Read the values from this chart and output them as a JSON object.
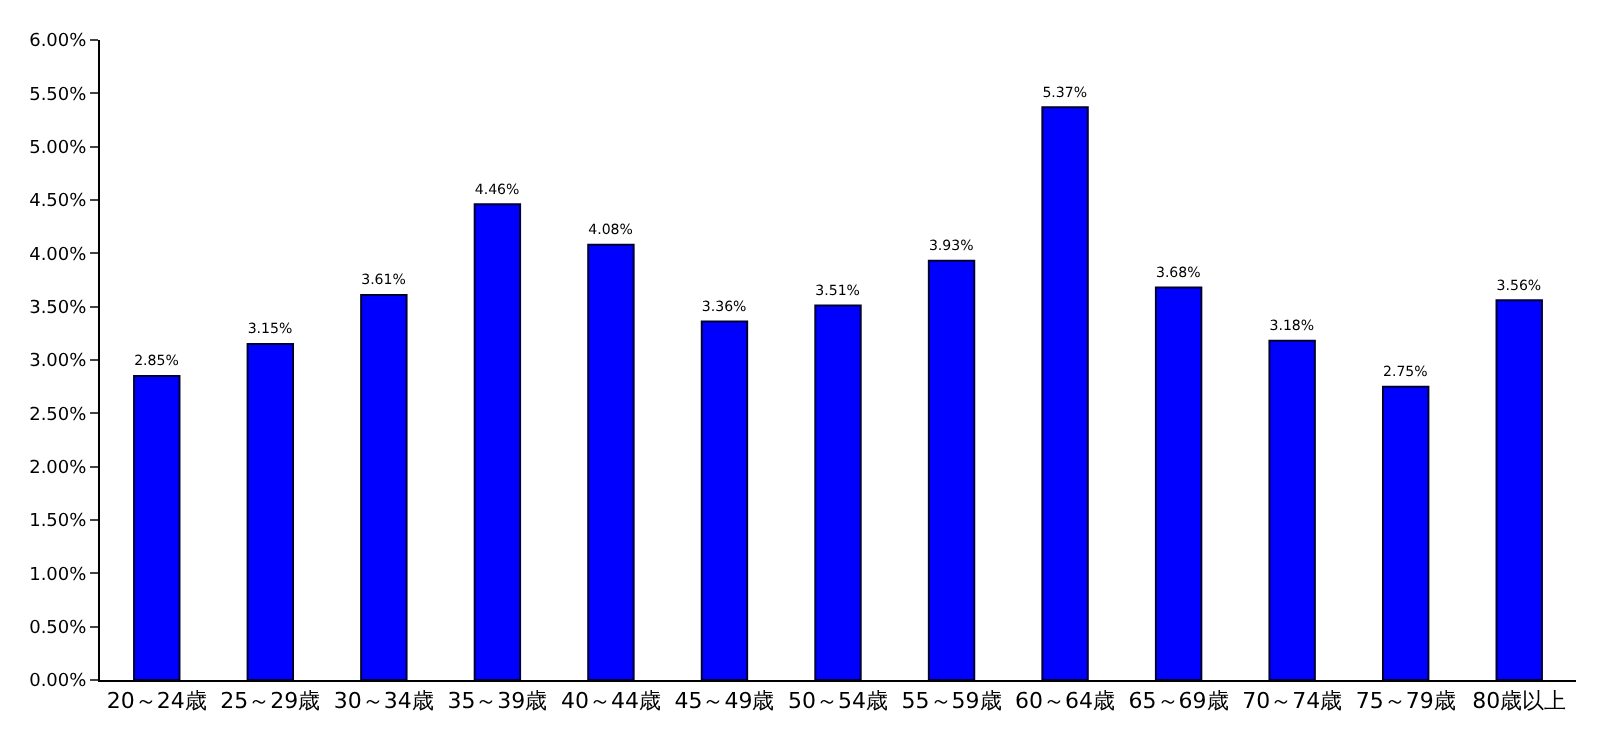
{
  "chart_data": {
    "type": "bar",
    "categories": [
      "20～24歳",
      "25～29歳",
      "30～34歳",
      "35～39歳",
      "40～44歳",
      "45～49歳",
      "50～54歳",
      "55～59歳",
      "60～64歳",
      "65～69歳",
      "70～74歳",
      "75～79歳",
      "80歳以上"
    ],
    "values": [
      2.85,
      3.15,
      3.61,
      4.46,
      4.08,
      3.36,
      3.51,
      3.93,
      5.37,
      3.68,
      3.18,
      2.75,
      3.56
    ],
    "value_labels": [
      "2.85%",
      "3.15%",
      "3.61%",
      "4.46%",
      "4.08%",
      "3.36%",
      "3.51%",
      "3.93%",
      "5.37%",
      "3.68%",
      "3.18%",
      "2.75%",
      "3.56%"
    ],
    "color": "#0000ff",
    "ylim": [
      0,
      6
    ],
    "yticks": [
      {
        "value": 0,
        "label": "0.00%"
      },
      {
        "value": 0.5,
        "label": "0.50%"
      },
      {
        "value": 1,
        "label": "1.00%"
      },
      {
        "value": 1.5,
        "label": "1.50%"
      },
      {
        "value": 2,
        "label": "2.00%"
      },
      {
        "value": 2.5,
        "label": "2.50%"
      },
      {
        "value": 3,
        "label": "3.00%"
      },
      {
        "value": 3.5,
        "label": "3.50%"
      },
      {
        "value": 4,
        "label": "4.00%"
      },
      {
        "value": 4.5,
        "label": "4.50%"
      },
      {
        "value": 5,
        "label": "5.00%"
      },
      {
        "value": 5.5,
        "label": "5.50%"
      },
      {
        "value": 6,
        "label": "6.00%"
      }
    ],
    "grid": false
  }
}
